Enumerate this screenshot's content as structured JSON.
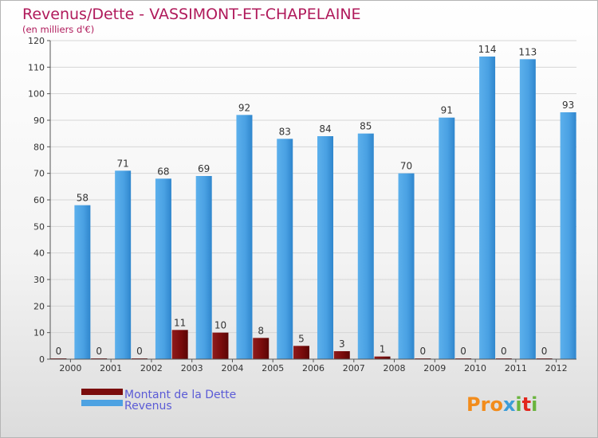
{
  "chart_data": {
    "type": "bar",
    "title": "Revenus/Dette - VASSIMONT-ET-CHAPELAINE",
    "subtitle": "(en milliers d'€)",
    "xlabel": "",
    "ylabel": "",
    "ylim": [
      0,
      120
    ],
    "yticks": [
      0,
      10,
      20,
      30,
      40,
      50,
      60,
      70,
      80,
      90,
      100,
      110,
      120
    ],
    "grid": true,
    "legend_position": "bottom-left",
    "categories": [
      "2000",
      "2001",
      "2002",
      "2003",
      "2004",
      "2005",
      "2006",
      "2007",
      "2008",
      "2009",
      "2010",
      "2011",
      "2012"
    ],
    "series": [
      {
        "name": "Montant de la Dette",
        "color": "#7a0c0c",
        "values": [
          0,
          0,
          0,
          11,
          10,
          8,
          5,
          3,
          1,
          0,
          0,
          0,
          0
        ]
      },
      {
        "name": "Revenus",
        "color": "#4da2e2",
        "values": [
          58,
          71,
          68,
          69,
          92,
          83,
          84,
          85,
          70,
          91,
          114,
          113,
          93
        ]
      }
    ]
  },
  "logo": {
    "text": "Proxiti",
    "colors": [
      "#f28c1c",
      "#3c9dd8",
      "#6ab43e",
      "#e2261d"
    ]
  }
}
